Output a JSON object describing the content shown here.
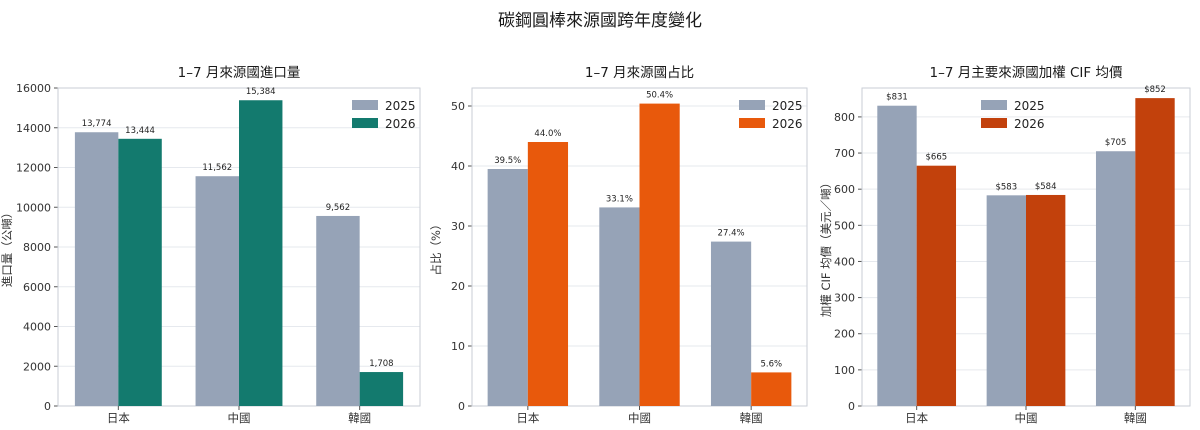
{
  "page_title": "碳鋼圓棒來源國跨年度變化",
  "chart_data": [
    {
      "type": "bar",
      "title": "1–7 月來源國進口量",
      "xlabel": "",
      "ylabel": "進口量（公噸）",
      "categories": [
        "日本",
        "中國",
        "韓國"
      ],
      "series": [
        {
          "name": "2025",
          "values": [
            13774,
            11562,
            9562
          ],
          "labels": [
            "13,774",
            "11,562",
            "9,562"
          ],
          "color": "#96a3b7"
        },
        {
          "name": "2026",
          "values": [
            13444,
            15384,
            1708
          ],
          "labels": [
            "13,444",
            "15,384",
            "1,708"
          ],
          "color": "#137a6e"
        }
      ],
      "ylim": [
        0,
        16000
      ],
      "yticks": [
        0,
        2000,
        4000,
        6000,
        8000,
        10000,
        12000,
        14000,
        16000
      ],
      "grid": true,
      "legend": "top-right"
    },
    {
      "type": "bar",
      "title": "1–7 月來源國占比",
      "xlabel": "",
      "ylabel": "占比（%）",
      "categories": [
        "日本",
        "中國",
        "韓國"
      ],
      "series": [
        {
          "name": "2025",
          "values": [
            39.5,
            33.1,
            27.4
          ],
          "labels": [
            "39.5%",
            "33.1%",
            "27.4%"
          ],
          "color": "#96a3b7"
        },
        {
          "name": "2026",
          "values": [
            44.0,
            50.4,
            5.6
          ],
          "labels": [
            "44.0%",
            "50.4%",
            "5.6%"
          ],
          "color": "#e8590c"
        }
      ],
      "ylim": [
        0,
        53
      ],
      "yticks": [
        0,
        10,
        20,
        30,
        40,
        50
      ],
      "grid": true,
      "legend": "top-right"
    },
    {
      "type": "bar",
      "title": "1–7 月主要來源國加權 CIF 均價",
      "xlabel": "",
      "ylabel": "加權 CIF 均價（美元／噸）",
      "categories": [
        "日本",
        "中國",
        "韓國"
      ],
      "series": [
        {
          "name": "2025",
          "values": [
            831,
            583,
            705
          ],
          "labels": [
            "$831",
            "$583",
            "$705"
          ],
          "color": "#96a3b7"
        },
        {
          "name": "2026",
          "values": [
            665,
            584,
            852
          ],
          "labels": [
            "$665",
            "$584",
            "$852"
          ],
          "color": "#c2410c"
        }
      ],
      "ylim": [
        0,
        880
      ],
      "yticks": [
        0,
        100,
        200,
        300,
        400,
        500,
        600,
        700,
        800
      ],
      "grid": true,
      "legend": "top-center"
    }
  ]
}
